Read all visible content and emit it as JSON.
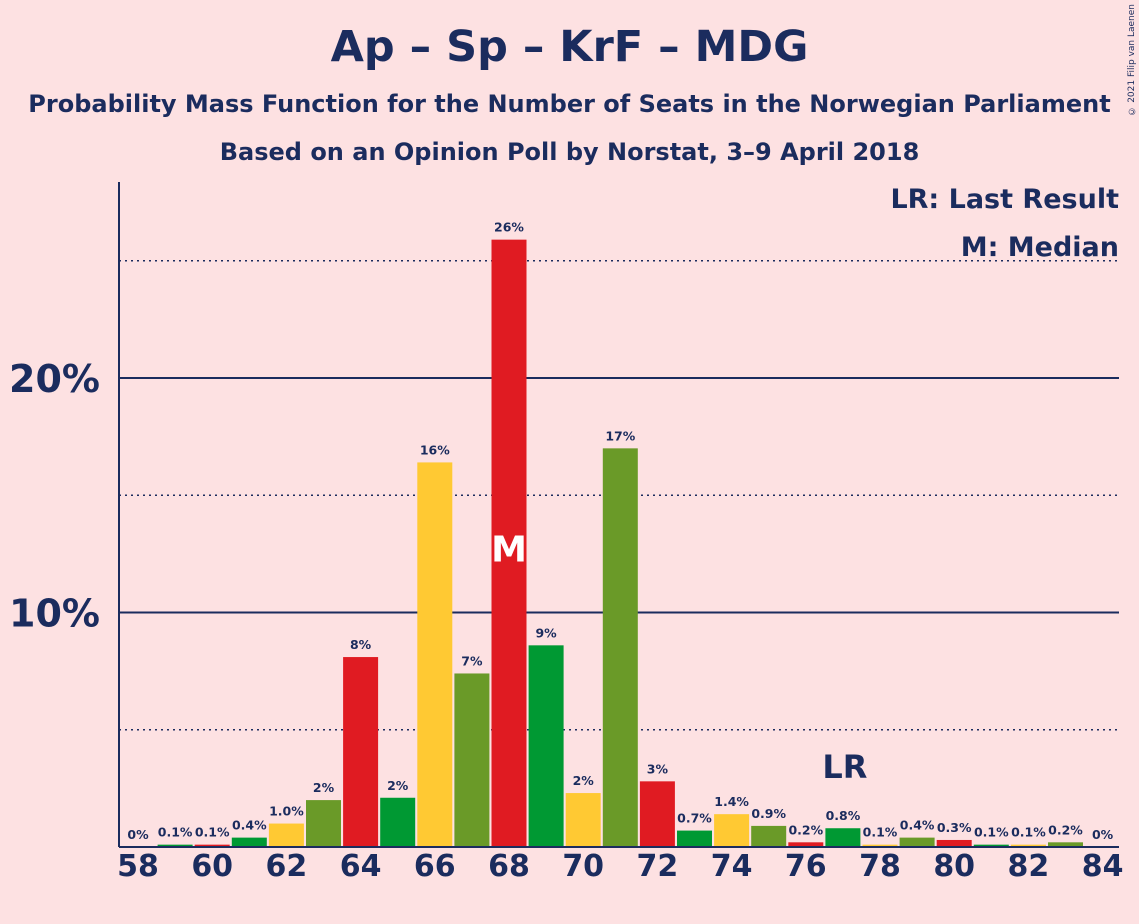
{
  "header": {
    "title": "Ap – Sp – KrF – MDG",
    "subtitle1": "Probability Mass Function for the Number of Seats in the Norwegian Parliament",
    "subtitle2": "Based on an Opinion Poll by Norstat, 3–9 April 2018",
    "copyright": "© 2021 Filip van Laenen"
  },
  "legend": {
    "lr": "LR: Last Result",
    "median": "M: Median"
  },
  "markers": {
    "median_label": "M",
    "median_seat": 68,
    "last_result_label": "LR",
    "last_result_seat": 77
  },
  "colors": {
    "background": "#fde1e2",
    "text": "#1b2c5e",
    "Ap": "#e01b22",
    "Sp": "#009933",
    "KrF": "#ffc933",
    "MDG": "#6a9a28"
  },
  "chart_data": {
    "type": "bar",
    "x": [
      58,
      59,
      60,
      61,
      62,
      63,
      64,
      65,
      66,
      67,
      68,
      69,
      70,
      71,
      72,
      73,
      74,
      75,
      76,
      77,
      78,
      79,
      80,
      81,
      82,
      83,
      84
    ],
    "values": [
      0,
      0.1,
      0.1,
      0.4,
      1.0,
      2.0,
      8.1,
      2.1,
      16.4,
      7.4,
      25.9,
      8.6,
      2.3,
      17.0,
      2.8,
      0.7,
      1.4,
      0.9,
      0.2,
      0.8,
      0.1,
      0.4,
      0.3,
      0.1,
      0.1,
      0.2,
      0
    ],
    "labels": [
      "0%",
      "0.1%",
      "0.1%",
      "0.4%",
      "1.0%",
      "2%",
      "8%",
      "2%",
      "16%",
      "7%",
      "26%",
      "9%",
      "2%",
      "17%",
      "3%",
      "0.7%",
      "1.4%",
      "0.9%",
      "0.2%",
      "0.8%",
      "0.1%",
      "0.4%",
      "0.3%",
      "0.1%",
      "0.1%",
      "0.2%",
      "0%"
    ],
    "bar_colors": [
      "Ap",
      "Sp",
      "Ap",
      "Sp",
      "KrF",
      "MDG",
      "Ap",
      "Sp",
      "KrF",
      "MDG",
      "Ap",
      "Sp",
      "KrF",
      "MDG",
      "Ap",
      "Sp",
      "KrF",
      "MDG",
      "Ap",
      "Sp",
      "KrF",
      "MDG",
      "Ap",
      "Sp",
      "KrF",
      "MDG",
      "Ap"
    ],
    "x_tick_labels": [
      "58",
      "60",
      "62",
      "64",
      "66",
      "68",
      "70",
      "72",
      "74",
      "76",
      "78",
      "80",
      "82",
      "84"
    ],
    "y_ticks": [
      {
        "value": 5,
        "label": "",
        "style": "dotted"
      },
      {
        "value": 10,
        "label": "10%",
        "style": "solid"
      },
      {
        "value": 15,
        "label": "",
        "style": "dotted"
      },
      {
        "value": 20,
        "label": "20%",
        "style": "solid"
      },
      {
        "value": 25,
        "label": "",
        "style": "dotted"
      }
    ],
    "ylim": [
      0,
      28.4
    ],
    "xlabel": "",
    "ylabel": ""
  }
}
